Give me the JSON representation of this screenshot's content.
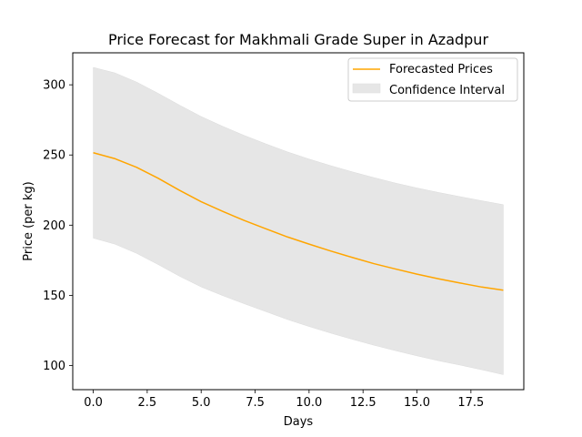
{
  "chart_data": {
    "type": "line",
    "title": "Price Forecast for Makhmali Grade Super in Azadpur",
    "xlabel": "Days",
    "ylabel": "Price (per kg)",
    "xlim": [
      -0.95,
      19.95
    ],
    "ylim": [
      82.8,
      322.8
    ],
    "xticks": [
      0.0,
      2.5,
      5.0,
      7.5,
      10.0,
      12.5,
      15.0,
      17.5
    ],
    "xtick_labels": [
      "0.0",
      "2.5",
      "5.0",
      "7.5",
      "10.0",
      "12.5",
      "15.0",
      "17.5"
    ],
    "yticks": [
      100,
      150,
      200,
      250,
      300
    ],
    "ytick_labels": [
      "100",
      "150",
      "200",
      "250",
      "300"
    ],
    "grid": false,
    "legend_position": "top-right",
    "x": [
      0,
      1,
      2,
      3,
      4,
      5,
      6,
      7,
      8,
      9,
      10,
      11,
      12,
      13,
      14,
      15,
      16,
      17,
      18,
      19
    ],
    "series": [
      {
        "name": "Forecasted Prices",
        "color": "#ffa500",
        "values": [
          251.6,
          247.4,
          241.3,
          233.5,
          224.8,
          216.7,
          209.8,
          203.3,
          197.4,
          191.6,
          186.5,
          181.6,
          177.0,
          172.6,
          168.8,
          165.1,
          161.8,
          158.8,
          155.9,
          153.7
        ]
      }
    ],
    "bands": [
      {
        "name": "Confidence Interval",
        "color": "#e6e6e6",
        "lower": [
          190.8,
          186.5,
          180.0,
          172.0,
          163.6,
          156.0,
          149.8,
          144.0,
          138.4,
          132.8,
          127.8,
          123.1,
          118.7,
          114.5,
          110.6,
          106.9,
          103.4,
          100.3,
          97.0,
          93.5
        ],
        "upper": [
          312.4,
          308.5,
          302.0,
          294.0,
          285.5,
          277.4,
          270.4,
          263.9,
          257.9,
          252.2,
          247.1,
          242.4,
          238.0,
          233.9,
          230.0,
          226.5,
          223.3,
          220.3,
          217.4,
          214.6
        ]
      }
    ]
  }
}
